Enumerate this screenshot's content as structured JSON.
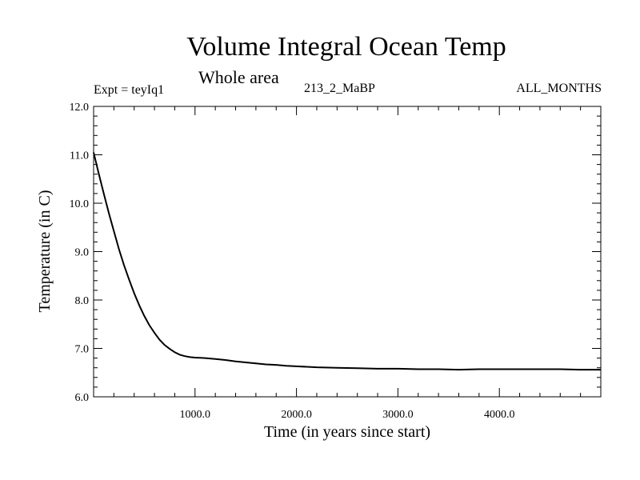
{
  "chart_data": {
    "type": "line",
    "title": "Volume Integral Ocean Temp",
    "subtitle": "Whole area",
    "annotations": {
      "experiment": "Expt = teyIq1",
      "run": "213_2_MaBP",
      "months": "ALL_MONTHS"
    },
    "xlabel": "Time (in years since start)",
    "ylabel": "Temperature (in C)",
    "xlim": [
      0,
      5000
    ],
    "ylim": [
      6.0,
      12.0
    ],
    "x_ticks": [
      1000,
      2000,
      3000,
      4000
    ],
    "x_tick_labels": [
      "1000.0",
      "2000.0",
      "3000.0",
      "4000.0"
    ],
    "y_ticks": [
      6,
      7,
      8,
      9,
      10,
      11,
      12
    ],
    "y_tick_labels": [
      "6.0",
      "7.0",
      "8.0",
      "9.0",
      "10.0",
      "11.0",
      "12.0"
    ],
    "grid": false,
    "series": [
      {
        "name": "Volume integral ocean temperature",
        "x": [
          0,
          50,
          100,
          150,
          200,
          250,
          300,
          350,
          400,
          450,
          500,
          550,
          600,
          650,
          700,
          750,
          800,
          850,
          900,
          950,
          1000,
          1100,
          1200,
          1300,
          1400,
          1500,
          1600,
          1700,
          1800,
          1900,
          2000,
          2200,
          2400,
          2600,
          2800,
          3000,
          3200,
          3400,
          3600,
          3800,
          4000,
          4200,
          4400,
          4600,
          4800,
          5000
        ],
        "y": [
          11.05,
          10.62,
          10.2,
          9.8,
          9.42,
          9.05,
          8.72,
          8.42,
          8.14,
          7.89,
          7.67,
          7.48,
          7.32,
          7.18,
          7.07,
          6.99,
          6.92,
          6.87,
          6.84,
          6.82,
          6.81,
          6.8,
          6.78,
          6.76,
          6.73,
          6.71,
          6.69,
          6.67,
          6.66,
          6.64,
          6.63,
          6.61,
          6.6,
          6.59,
          6.58,
          6.58,
          6.57,
          6.57,
          6.56,
          6.57,
          6.57,
          6.57,
          6.57,
          6.57,
          6.56,
          6.56
        ]
      }
    ]
  }
}
